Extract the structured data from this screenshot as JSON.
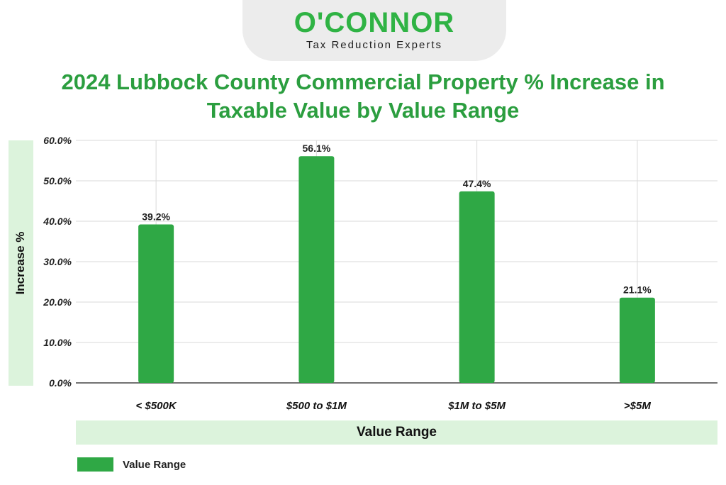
{
  "logo": {
    "wordmark": "O'CONNOR",
    "tagline": "Tax Reduction Experts"
  },
  "colors": {
    "bar": "#2fa845",
    "title": "#2b9e3f",
    "band": "#dcf3dc",
    "grid": "#d9d9d9"
  },
  "chart_data": {
    "type": "bar",
    "title": "2024 Lubbock County Commercial Property % Increase in Taxable Value by Value Range",
    "xlabel": "Value Range",
    "ylabel": "Increase %",
    "categories": [
      "< $500K",
      "$500 to $1M",
      "$1M to $5M",
      ">$5M"
    ],
    "series": [
      {
        "name": "Value Range",
        "values": [
          39.2,
          56.1,
          47.4,
          21.1
        ],
        "labels": [
          "39.2%",
          "56.1%",
          "47.4%",
          "21.1%"
        ]
      }
    ],
    "ylim": [
      0,
      60
    ],
    "yticks": [
      "0.0%",
      "10.0%",
      "20.0%",
      "30.0%",
      "40.0%",
      "50.0%",
      "60.0%"
    ],
    "grid": true,
    "legend_position": "bottom-left"
  }
}
